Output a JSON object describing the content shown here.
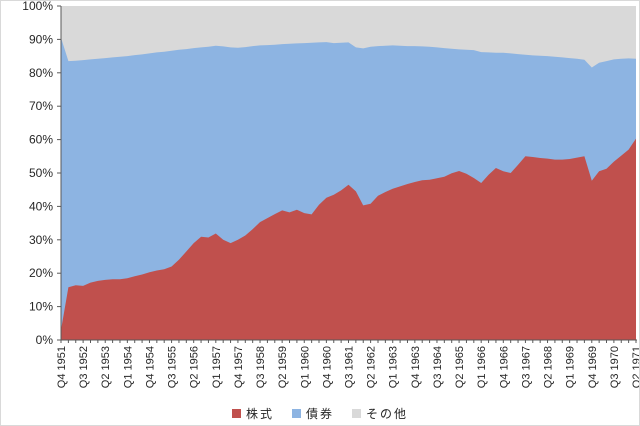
{
  "chart_data": {
    "type": "area",
    "stacked_percent": true,
    "title": "",
    "xlabel": "",
    "ylabel": "",
    "ylim": [
      0,
      100
    ],
    "grid": false,
    "legend_position": "bottom",
    "y_tick_labels": [
      "0%",
      "10%",
      "20%",
      "30%",
      "40%",
      "50%",
      "60%",
      "70%",
      "80%",
      "90%",
      "100%"
    ],
    "x_label_every": 3,
    "categories": [
      "Q4 1951",
      "Q1 1952",
      "Q2 1952",
      "Q3 1952",
      "Q4 1952",
      "Q1 1953",
      "Q2 1953",
      "Q3 1953",
      "Q4 1953",
      "Q1 1954",
      "Q2 1954",
      "Q3 1954",
      "Q4 1954",
      "Q1 1955",
      "Q2 1955",
      "Q3 1955",
      "Q4 1955",
      "Q1 1956",
      "Q2 1956",
      "Q3 1956",
      "Q4 1956",
      "Q1 1957",
      "Q2 1957",
      "Q3 1957",
      "Q4 1957",
      "Q1 1958",
      "Q2 1958",
      "Q3 1958",
      "Q4 1958",
      "Q1 1959",
      "Q2 1959",
      "Q3 1959",
      "Q4 1959",
      "Q1 1960",
      "Q2 1960",
      "Q3 1960",
      "Q4 1960",
      "Q1 1961",
      "Q2 1961",
      "Q3 1961",
      "Q4 1961",
      "Q1 1962",
      "Q2 1962",
      "Q3 1962",
      "Q4 1962",
      "Q1 1963",
      "Q2 1963",
      "Q3 1963",
      "Q4 1963",
      "Q1 1964",
      "Q2 1964",
      "Q3 1964",
      "Q4 1964",
      "Q1 1965",
      "Q2 1965",
      "Q3 1965",
      "Q4 1965",
      "Q1 1966",
      "Q2 1966",
      "Q3 1966",
      "Q4 1966",
      "Q1 1967",
      "Q2 1967",
      "Q3 1967",
      "Q4 1967",
      "Q1 1968",
      "Q2 1968",
      "Q3 1968",
      "Q4 1968",
      "Q1 1969",
      "Q2 1969",
      "Q3 1969",
      "Q4 1969",
      "Q1 1970",
      "Q2 1970",
      "Q3 1970",
      "Q4 1970",
      "Q1 1971",
      "Q2 1971"
    ],
    "series": [
      {
        "name": "株式",
        "color": "#C0504D",
        "values": [
          3.0,
          15.8,
          16.4,
          16.2,
          17.2,
          17.7,
          18.0,
          18.2,
          18.2,
          18.5,
          19.1,
          19.6,
          20.3,
          20.8,
          21.2,
          22.0,
          24.0,
          26.5,
          29.0,
          30.9,
          30.7,
          31.9,
          30.0,
          29.0,
          30.0,
          31.3,
          33.2,
          35.3,
          36.5,
          37.7,
          38.8,
          38.2,
          39.0,
          38.0,
          37.6,
          40.5,
          42.6,
          43.5,
          44.8,
          46.5,
          44.5,
          40.3,
          40.8,
          43.2,
          44.3,
          45.3,
          46.0,
          46.7,
          47.3,
          47.8,
          48.0,
          48.4,
          48.9,
          49.9,
          50.6,
          49.8,
          48.5,
          47.0,
          49.5,
          51.5,
          50.5,
          50.0,
          52.5,
          55.0,
          54.8,
          54.5,
          54.3,
          54.0,
          54.0,
          54.2,
          54.6,
          55.0,
          47.7,
          50.5,
          51.3,
          53.4,
          55.2,
          57.0,
          60.3
        ]
      },
      {
        "name": "債券",
        "color": "#8DB4E2",
        "values": [
          87.5,
          67.7,
          67.2,
          67.6,
          66.8,
          66.5,
          66.4,
          66.4,
          66.6,
          66.5,
          66.2,
          65.9,
          65.5,
          65.3,
          65.1,
          64.6,
          62.9,
          60.6,
          58.4,
          56.7,
          57.1,
          56.2,
          57.9,
          58.6,
          57.5,
          56.4,
          54.8,
          52.9,
          51.8,
          50.7,
          49.8,
          50.5,
          49.8,
          50.9,
          51.4,
          48.6,
          46.6,
          45.4,
          44.2,
          42.6,
          43.1,
          47.0,
          47.0,
          44.8,
          43.8,
          42.9,
          42.1,
          41.3,
          40.7,
          40.1,
          39.8,
          39.2,
          38.5,
          37.3,
          36.4,
          37.1,
          38.3,
          39.2,
          36.6,
          34.5,
          35.5,
          35.8,
          33.1,
          30.4,
          30.4,
          30.6,
          30.7,
          30.8,
          30.6,
          30.2,
          29.6,
          28.9,
          33.9,
          32.5,
          32.2,
          30.6,
          29.0,
          27.3,
          23.9
        ]
      },
      {
        "name": "その他",
        "color": "#D9D9D9",
        "values": [
          9.5,
          16.5,
          16.4,
          16.2,
          16.0,
          15.8,
          15.6,
          15.4,
          15.2,
          15.0,
          14.7,
          14.5,
          14.2,
          13.9,
          13.7,
          13.4,
          13.1,
          12.9,
          12.6,
          12.4,
          12.2,
          11.9,
          12.1,
          12.4,
          12.5,
          12.3,
          12.0,
          11.8,
          11.7,
          11.6,
          11.4,
          11.3,
          11.2,
          11.1,
          11.0,
          10.9,
          10.8,
          11.1,
          11.0,
          10.9,
          12.4,
          12.7,
          12.2,
          12.0,
          11.9,
          11.8,
          11.9,
          12.0,
          12.0,
          12.1,
          12.2,
          12.4,
          12.6,
          12.8,
          13.0,
          13.1,
          13.2,
          13.8,
          13.9,
          14.0,
          14.0,
          14.2,
          14.4,
          14.6,
          14.8,
          14.9,
          15.0,
          15.2,
          15.4,
          15.6,
          15.8,
          16.1,
          18.4,
          17.0,
          16.5,
          16.0,
          15.8,
          15.7,
          15.8
        ]
      }
    ]
  },
  "legend": {
    "items": [
      {
        "label": "株式",
        "color": "#C0504D"
      },
      {
        "label": "債券",
        "color": "#8DB4E2"
      },
      {
        "label": "その他",
        "color": "#D9D9D9"
      }
    ]
  },
  "style": {
    "axis_color": "#595959",
    "text_color": "#262626",
    "background": "#ffffff"
  }
}
